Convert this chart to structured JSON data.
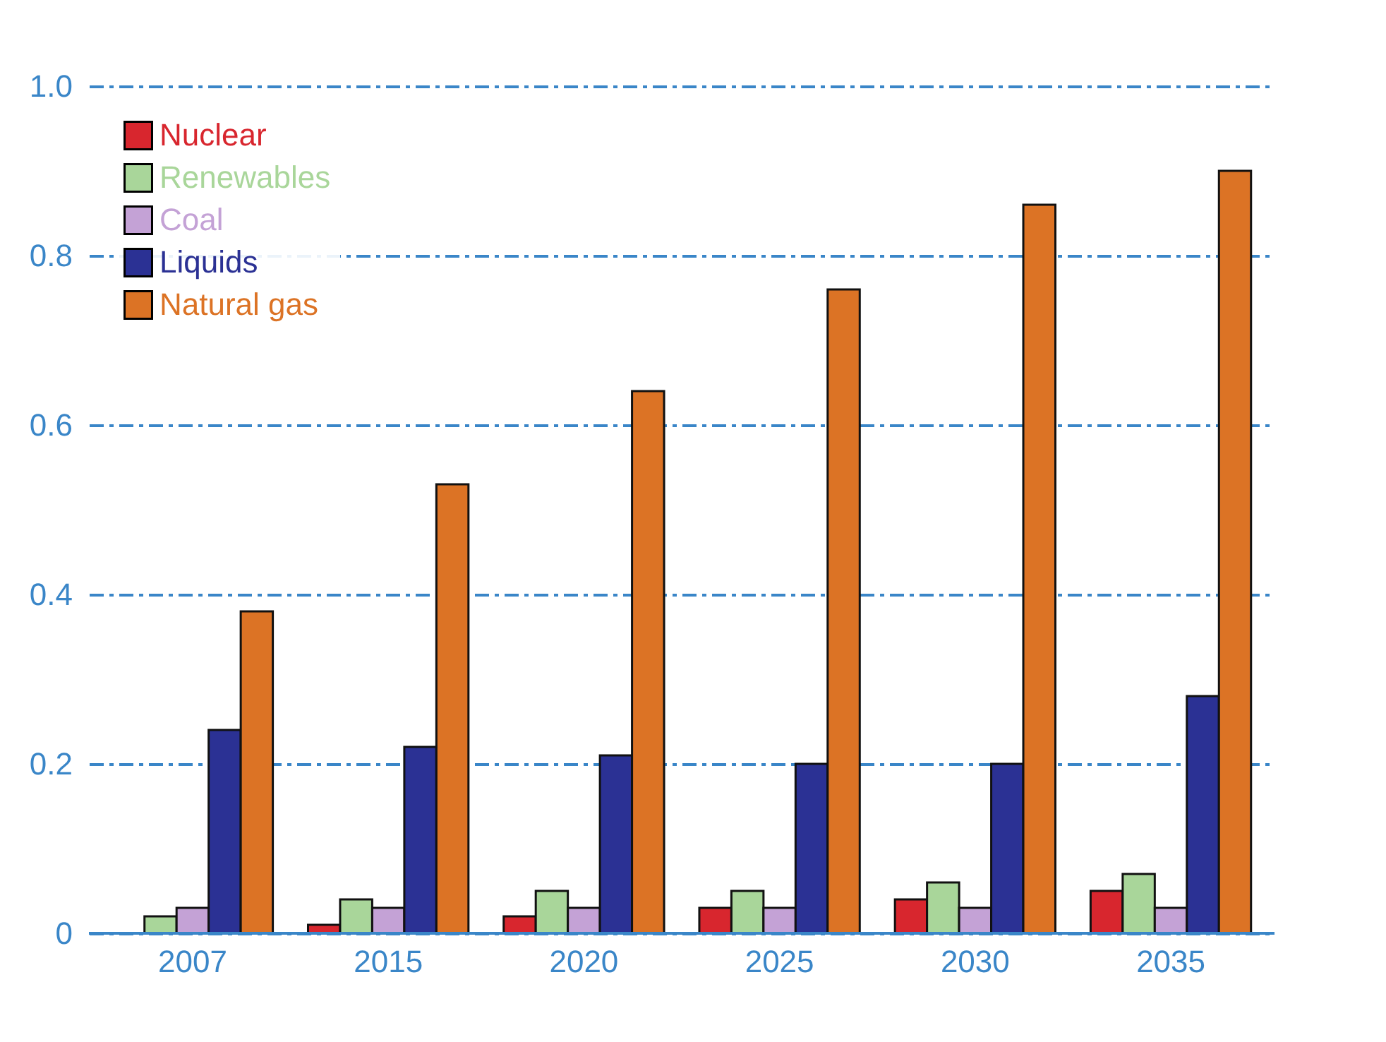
{
  "chart_data": {
    "type": "bar",
    "categories": [
      "2007",
      "2015",
      "2020",
      "2025",
      "2030",
      "2035"
    ],
    "series": [
      {
        "name": "Nuclear",
        "color": "#d8262e",
        "values": [
          null,
          0.01,
          0.02,
          0.03,
          0.04,
          0.05
        ]
      },
      {
        "name": "Renewables",
        "color": "#a9d69a",
        "values": [
          0.02,
          0.04,
          0.05,
          0.05,
          0.06,
          0.07
        ]
      },
      {
        "name": "Coal",
        "color": "#c4a2d6",
        "values": [
          0.03,
          0.03,
          0.03,
          0.03,
          0.03,
          0.03
        ]
      },
      {
        "name": "Liquids",
        "color": "#2b3194",
        "values": [
          0.24,
          0.22,
          0.21,
          0.2,
          0.2,
          0.28
        ]
      },
      {
        "name": "Natural gas",
        "color": "#dc7325",
        "values": [
          0.38,
          0.53,
          0.64,
          0.76,
          0.86,
          0.9
        ]
      }
    ],
    "ylim": [
      0,
      1.0
    ],
    "yticks": [
      0,
      0.2,
      0.4,
      0.6,
      0.8,
      {
        "value": 1,
        "label": "1.0"
      }
    ],
    "grid": "y",
    "legend": "top left"
  }
}
